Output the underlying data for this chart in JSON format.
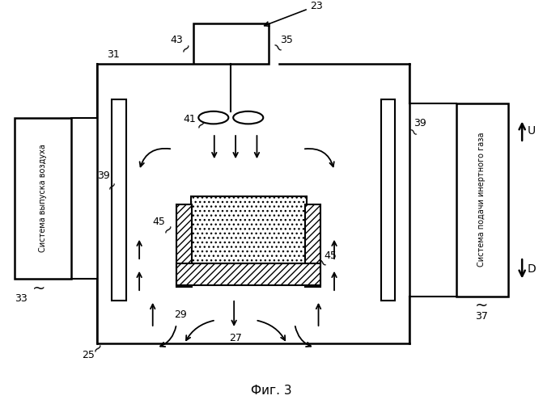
{
  "title": "Фиг. 3",
  "background_color": "#ffffff",
  "line_color": "#000000",
  "fig_width": 6.71,
  "fig_height": 5.0,
  "dpi": 100,
  "left_box_text": "Система выпуска воздуха",
  "right_box_text": "Система подачи инертного газа"
}
